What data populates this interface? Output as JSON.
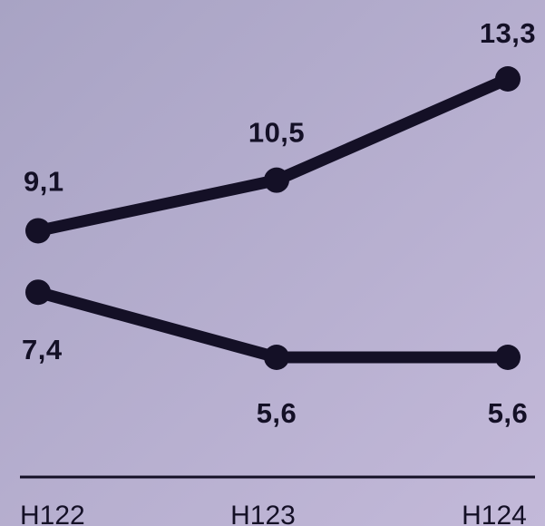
{
  "chart_data": {
    "type": "line",
    "categories": [
      "H122",
      "H123",
      "H124"
    ],
    "series": [
      {
        "values": [
          9.1,
          10.5,
          13.3
        ],
        "labels": [
          "9,1",
          "10,5",
          "13,3"
        ]
      },
      {
        "values": [
          7.4,
          5.6,
          5.6
        ],
        "labels": [
          "7,4",
          "5,6",
          "5,6"
        ]
      }
    ],
    "title": "",
    "xlabel": "",
    "ylabel": "",
    "ylim": [
      5.0,
      14.0
    ],
    "grid": false,
    "legend": "none"
  },
  "colors": {
    "background_top_left": "#a8a3c4",
    "background_bottom_right": "#c3b9d9",
    "line": "#141026",
    "text": "#141026"
  }
}
